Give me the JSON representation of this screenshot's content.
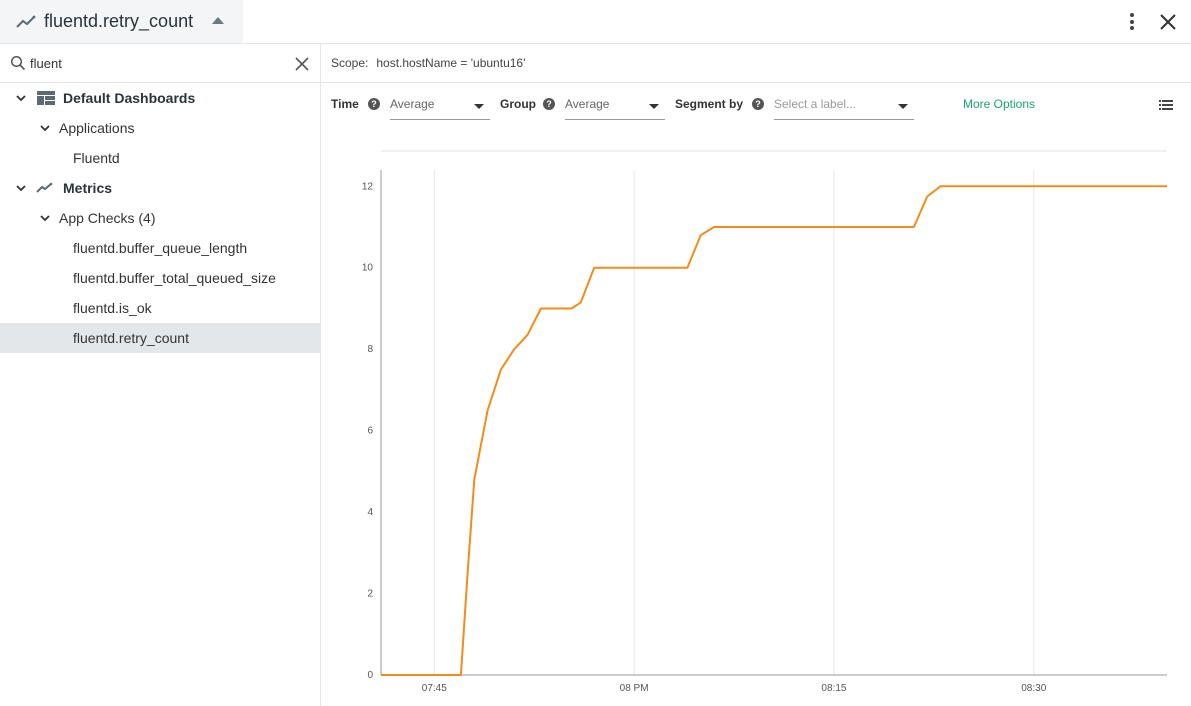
{
  "header": {
    "title": "fluentd.retry_count",
    "icons": {
      "metric": "metric-line-icon",
      "caret": "caret-up-icon",
      "menu": "kebab-menu-icon",
      "close": "close-icon"
    }
  },
  "sidebar": {
    "search": {
      "value": "fluent",
      "placeholder": ""
    },
    "tree": {
      "dashboards": {
        "label": "Default Dashboards",
        "icon": "dashboard-icon"
      },
      "applications": {
        "label": "Applications"
      },
      "fluentd": {
        "label": "Fluentd"
      },
      "metrics": {
        "label": "Metrics",
        "icon": "metric-line-icon"
      },
      "app_checks": {
        "label": "App Checks (4)"
      },
      "items": [
        {
          "label": "fluentd.buffer_queue_length"
        },
        {
          "label": "fluentd.buffer_total_queued_size"
        },
        {
          "label": "fluentd.is_ok"
        },
        {
          "label": "fluentd.retry_count"
        }
      ],
      "selected_index": 3
    }
  },
  "main": {
    "scope": {
      "label": "Scope:",
      "value": "host.hostName = 'ubuntu16'"
    },
    "controls": {
      "time": {
        "label": "Time",
        "value": "Average"
      },
      "group": {
        "label": "Group",
        "value": "Average"
      },
      "segment": {
        "label": "Segment by",
        "placeholder": "Select a label..."
      },
      "more_options": "More Options",
      "help_glyph": "?"
    }
  },
  "colors": {
    "accent": "#1aa37a",
    "series": "#f28c1a",
    "selected_row": "#e3e7ea"
  },
  "chart_data": {
    "type": "line",
    "title": "",
    "xlabel": "",
    "ylabel": "",
    "x_ticks": [
      "07:45",
      "08 PM",
      "08:15",
      "08:30"
    ],
    "x_tick_minutes": [
      105,
      120,
      135,
      150
    ],
    "xlim_minutes": [
      101,
      160
    ],
    "y_ticks": [
      0,
      2,
      4,
      6,
      8,
      10,
      12
    ],
    "ylim": [
      0,
      12.4
    ],
    "grid": "vertical",
    "legend": "none",
    "series": [
      {
        "points": [
          [
            101,
            0
          ],
          [
            107,
            0
          ],
          [
            107.5,
            2.5
          ],
          [
            108,
            4.8
          ],
          [
            109,
            6.5
          ],
          [
            110,
            7.5
          ],
          [
            111,
            8
          ],
          [
            112,
            8.35
          ],
          [
            113,
            9
          ],
          [
            115.3,
            9
          ],
          [
            116,
            9.15
          ],
          [
            117,
            10
          ],
          [
            124,
            10
          ],
          [
            125,
            10.8
          ],
          [
            126,
            11
          ],
          [
            141,
            11
          ],
          [
            142,
            11.75
          ],
          [
            143,
            12
          ],
          [
            160,
            12
          ]
        ]
      }
    ]
  }
}
